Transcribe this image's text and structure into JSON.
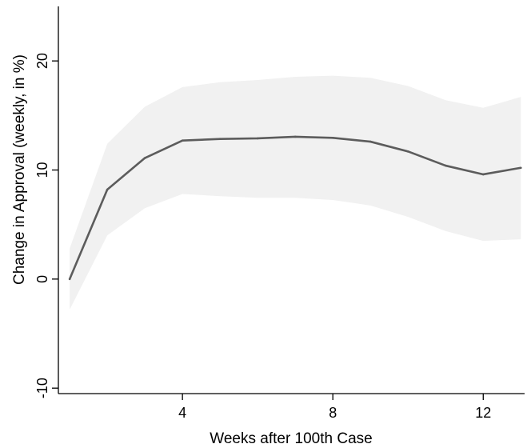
{
  "chart_data": {
    "type": "line",
    "title": "",
    "xlabel": "Weeks after 100th Case",
    "ylabel": "Change in Approval (weekly, in %)",
    "xlim": [
      0.7,
      13.1
    ],
    "ylim": [
      -10.5,
      25
    ],
    "xticks": [
      4,
      8,
      12
    ],
    "yticks": [
      -10,
      0,
      10,
      20
    ],
    "grid": false,
    "legend": "none",
    "colors": {
      "line": "#5c5c5c",
      "band": "#f1f1f1"
    },
    "series": [
      {
        "x": [
          1,
          2,
          3,
          4,
          5,
          6,
          7,
          8,
          9,
          10,
          11,
          12,
          13
        ],
        "values": [
          0.0,
          8.2,
          11.1,
          12.7,
          12.85,
          12.9,
          13.05,
          12.95,
          12.6,
          11.7,
          10.4,
          9.6,
          10.2
        ],
        "lower": [
          -2.8,
          4.0,
          6.5,
          7.8,
          7.6,
          7.45,
          7.45,
          7.25,
          6.75,
          5.7,
          4.4,
          3.5,
          3.65
        ],
        "upper": [
          2.8,
          12.4,
          15.8,
          17.6,
          18.05,
          18.25,
          18.55,
          18.65,
          18.45,
          17.7,
          16.4,
          15.7,
          16.7
        ]
      }
    ]
  }
}
